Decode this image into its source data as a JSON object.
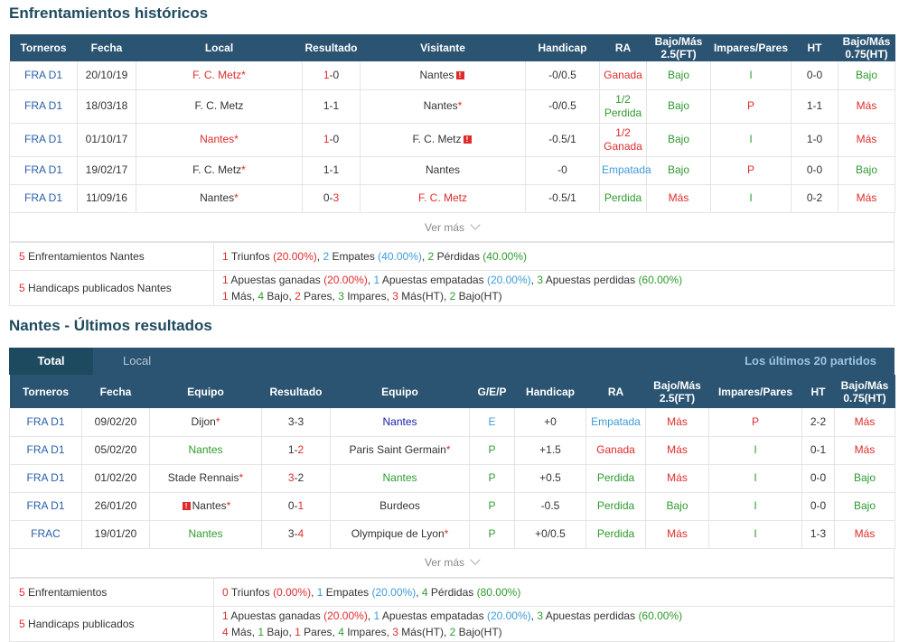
{
  "h2h": {
    "title": "Enfrentamientos históricos",
    "headers": [
      "Torneros",
      "Fecha",
      "Local",
      "Resultado",
      "Visitante",
      "Handicap",
      "RA",
      "Bajo/Más 2.5(FT)",
      "Impares/Pares",
      "HT",
      "Bajo/Más 0.75(HT)"
    ],
    "rows": [
      {
        "league": "FRA D1",
        "date": "20/10/19",
        "home": "F. C. Metz",
        "home_star": true,
        "res_a": "1",
        "res_b": "0",
        "away": "Nantes",
        "away_star": false,
        "handicap": "-0/0.5",
        "ra": "Ganada",
        "ou": "Bajo",
        "oe": "I",
        "ht": "0-0",
        "ou_ht": "Bajo"
      },
      {
        "league": "FRA D1",
        "date": "18/03/18",
        "home": "F. C. Metz",
        "home_star": false,
        "res_a": "1",
        "res_b": "1",
        "away": "Nantes",
        "away_star": true,
        "handicap": "-0/0.5",
        "ra": "1/2 Perdida",
        "ou": "Bajo",
        "oe": "P",
        "ht": "1-1",
        "ou_ht": "Más"
      },
      {
        "league": "FRA D1",
        "date": "01/10/17",
        "home": "Nantes",
        "home_star": true,
        "res_a": "1",
        "res_b": "0",
        "away": "F. C. Metz",
        "away_star": false,
        "handicap": "-0.5/1",
        "ra": "1/2 Ganada",
        "ou": "Bajo",
        "oe": "I",
        "ht": "1-0",
        "ou_ht": "Más"
      },
      {
        "league": "FRA D1",
        "date": "19/02/17",
        "home": "F. C. Metz",
        "home_star": true,
        "res_a": "1",
        "res_b": "1",
        "away": "Nantes",
        "away_star": false,
        "handicap": "-0",
        "ra": "Empatada",
        "ou": "Bajo",
        "oe": "P",
        "ht": "0-0",
        "ou_ht": "Bajo"
      },
      {
        "league": "FRA D1",
        "date": "11/09/16",
        "home": "Nantes",
        "home_star": true,
        "res_a": "0",
        "res_b": "3",
        "away": "F. C. Metz",
        "away_star": false,
        "handicap": "-0.5/1",
        "ra": "Perdida",
        "ou": "Más",
        "oe": "I",
        "ht": "0-2",
        "ou_ht": "Más"
      }
    ],
    "ver_mas": "Ver más",
    "summary": {
      "label1": "Enfrentamientos Nantes",
      "label1_n": "5",
      "wins": "1",
      "wins_label": "Triunfos",
      "wins_pct": "(20.00%)",
      "draws": "2",
      "draws_label": "Empates",
      "draws_pct": "(40.00%)",
      "losses": "2",
      "losses_label": "Pérdidas",
      "losses_pct": "(40.00%)",
      "label2": "Handicaps publicados Nantes",
      "label2_n": "5",
      "hw": "1",
      "hw_label": "Apuestas ganadas",
      "hw_pct": "(20.00%)",
      "hd": "1",
      "hd_label": "Apuestas empatadas",
      "hd_pct": "(20.00%)",
      "hl": "3",
      "hl_label": "Apuestas perdidas",
      "hl_pct": "(60.00%)",
      "mas": "1",
      "mas_label": "Más,",
      "bajo": "4",
      "bajo_label": "Bajo,",
      "pares": "2",
      "pares_label": "Pares,",
      "impares": "3",
      "impares_label": "Impares,",
      "masht": "3",
      "masht_label": "Más(HT),",
      "bajoht": "2",
      "bajoht_label": "Bajo(HT)"
    }
  },
  "recent": {
    "title": "Nantes - Últimos resultados",
    "tab_total": "Total",
    "tab_local": "Local",
    "last_label": "Los últimos 20 partidos",
    "headers": [
      "Torneros",
      "Fecha",
      "Equipo",
      "Resultado",
      "Equipo",
      "G/E/P",
      "Handicap",
      "RA",
      "Bajo/Más 2.5(FT)",
      "Impares/Pares",
      "HT",
      "Bajo/Más 0.75(HT)"
    ],
    "rows": [
      {
        "league": "FRA D1",
        "date": "09/02/20",
        "home": "Dijon",
        "home_star": true,
        "res_a": "3",
        "res_b": "3",
        "away": "Nantes",
        "away_star": false,
        "gep": "E",
        "handicap": "+0",
        "ra": "Empatada",
        "ou": "Más",
        "oe": "P",
        "ht": "2-2",
        "ou_ht": "Más"
      },
      {
        "league": "FRA D1",
        "date": "05/02/20",
        "home": "Nantes",
        "home_star": false,
        "res_a": "1",
        "res_b": "2",
        "away": "Paris Saint Germain",
        "away_star": true,
        "gep": "P",
        "handicap": "+1.5",
        "ra": "Ganada",
        "ou": "Más",
        "oe": "I",
        "ht": "0-1",
        "ou_ht": "Más"
      },
      {
        "league": "FRA D1",
        "date": "01/02/20",
        "home": "Stade Rennais",
        "home_star": true,
        "res_a": "3",
        "res_b": "2",
        "away": "Nantes",
        "away_star": false,
        "gep": "P",
        "handicap": "+0.5",
        "ra": "Perdida",
        "ou": "Más",
        "oe": "I",
        "ht": "0-0",
        "ou_ht": "Bajo"
      },
      {
        "league": "FRA D1",
        "date": "26/01/20",
        "home": "Nantes",
        "home_star": true,
        "res_a": "0",
        "res_b": "1",
        "away": "Burdeos",
        "away_star": false,
        "gep": "P",
        "handicap": "-0.5",
        "ra": "Perdida",
        "ou": "Bajo",
        "oe": "I",
        "ht": "0-0",
        "ou_ht": "Bajo"
      },
      {
        "league": "FRAC",
        "date": "19/01/20",
        "home": "Nantes",
        "home_star": false,
        "res_a": "3",
        "res_b": "4",
        "away": "Olympique de Lyon",
        "away_star": true,
        "gep": "P",
        "handicap": "+0/0.5",
        "ra": "Perdida",
        "ou": "Más",
        "oe": "I",
        "ht": "1-3",
        "ou_ht": "Más"
      }
    ],
    "ver_mas": "Ver más",
    "summary": {
      "label1": "Enfrentamientos",
      "label1_n": "5",
      "wins": "0",
      "wins_label": "Triunfos",
      "wins_pct": "(0.00%)",
      "draws": "1",
      "draws_label": "Empates",
      "draws_pct": "(20.00%)",
      "losses": "4",
      "losses_label": "Pérdidas",
      "losses_pct": "(80.00%)",
      "label2": "Handicaps publicados",
      "label2_n": "5",
      "hw": "1",
      "hw_label": "Apuestas ganadas",
      "hw_pct": "(20.00%)",
      "hd": "1",
      "hd_label": "Apuestas empatadas",
      "hd_pct": "(20.00%)",
      "hl": "3",
      "hl_label": "Apuestas perdidas",
      "hl_pct": "(60.00%)",
      "mas": "4",
      "mas_label": "Más,",
      "bajo": "1",
      "bajo_label": "Bajo,",
      "pares": "1",
      "pares_label": "Pares,",
      "impares": "4",
      "impares_label": "Impares,",
      "masht": "3",
      "masht_label": "Más(HT),",
      "bajoht": "2",
      "bajoht_label": "Bajo(HT)"
    }
  },
  "colors": {
    "header_bg": "#2b5472",
    "win": "#e02b2b",
    "draw": "#3e9ad8",
    "loss": "#2e9b2e",
    "link": "#2960a8"
  }
}
